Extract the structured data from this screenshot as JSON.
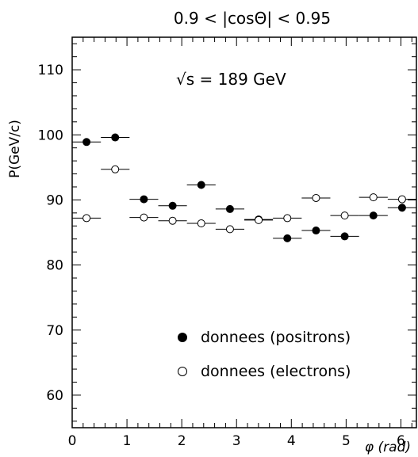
{
  "chart_data": {
    "type": "scatter",
    "title": "0.9 < |cosΘ| < 0.95",
    "annotation": "√s = 189 GeV",
    "xlabel": "φ (rad)",
    "ylabel": "P(GeV/c)",
    "xlim": [
      0,
      6.283
    ],
    "ylim": [
      55,
      115
    ],
    "x_ticks": [
      0,
      1,
      2,
      3,
      4,
      5,
      6
    ],
    "y_ticks": [
      60,
      70,
      80,
      90,
      100,
      110
    ],
    "bin_edges": [
      0,
      0.524,
      1.047,
      1.571,
      2.094,
      2.618,
      3.142,
      3.665,
      4.189,
      4.712,
      5.236,
      5.76,
      6.283
    ],
    "x": [
      0.262,
      0.785,
      1.309,
      1.833,
      2.356,
      2.88,
      3.403,
      3.927,
      4.451,
      4.974,
      5.498,
      6.021
    ],
    "series": [
      {
        "name": "donnees (positrons)",
        "marker": "filled",
        "color": "#000000",
        "values": [
          98.9,
          99.6,
          90.1,
          89.1,
          92.3,
          88.6,
          87.0,
          84.1,
          85.3,
          84.4,
          87.6,
          88.8
        ]
      },
      {
        "name": "donnees (electrons)",
        "marker": "open",
        "color": "#000000",
        "values": [
          87.2,
          94.7,
          87.3,
          86.8,
          86.4,
          85.5,
          86.9,
          87.2,
          90.3,
          87.6,
          90.4,
          90.1
        ]
      }
    ],
    "legend_position": "lower-right",
    "grid": false
  }
}
